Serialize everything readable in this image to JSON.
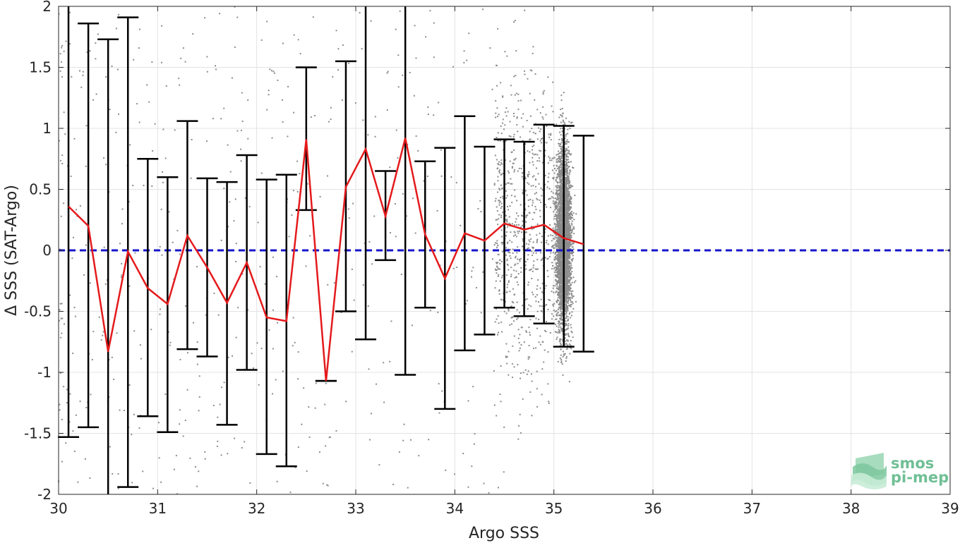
{
  "chart_data": {
    "type": "scatter",
    "xlabel": "Argo SSS",
    "ylabel": "Δ SSS (SAT-Argo)",
    "xlim": [
      30,
      39
    ],
    "ylim": [
      -2,
      2
    ],
    "x_ticks": [
      "30",
      "31",
      "32",
      "33",
      "34",
      "35",
      "36",
      "37",
      "38",
      "39"
    ],
    "y_ticks": [
      "-2",
      "-1.5",
      "-1",
      "-0.5",
      "0",
      "0.5",
      "1",
      "1.5",
      "2"
    ],
    "grid": true,
    "reference_line": {
      "y": 0,
      "style": "dashed",
      "color": "#1515cc"
    },
    "scatter_description_color": "#8c8c8c",
    "scatter_cluster": {
      "x_center": 35.1,
      "x_spread": 0.1,
      "y_center": 0.1,
      "y_spread": 0.5
    },
    "mean_line": {
      "color": "#e41a1c",
      "x": [
        30.1,
        30.3,
        30.5,
        30.7,
        30.9,
        31.1,
        31.3,
        31.5,
        31.7,
        31.9,
        32.1,
        32.3,
        32.5,
        32.7,
        32.9,
        33.1,
        33.3,
        33.5,
        33.7,
        33.9,
        34.1,
        34.3,
        34.5,
        34.7,
        34.9,
        35.1,
        35.3
      ],
      "y": [
        0.36,
        0.2,
        -0.83,
        -0.01,
        -0.31,
        -0.44,
        0.12,
        -0.14,
        -0.43,
        -0.1,
        -0.55,
        -0.58,
        0.91,
        -1.07,
        0.52,
        0.83,
        0.28,
        0.92,
        0.13,
        -0.23,
        0.14,
        0.08,
        0.22,
        0.17,
        0.21,
        0.1,
        0.05
      ]
    },
    "error_bars": {
      "color": "#000000",
      "x": [
        30.1,
        30.3,
        30.5,
        30.7,
        30.9,
        31.1,
        31.3,
        31.5,
        31.7,
        31.9,
        32.1,
        32.3,
        32.5,
        32.7,
        32.9,
        33.1,
        33.3,
        33.5,
        33.7,
        33.9,
        34.1,
        34.3,
        34.5,
        34.7,
        34.9,
        35.1,
        35.3
      ],
      "lower": [
        -1.53,
        -1.45,
        -2.2,
        -1.94,
        -1.36,
        -1.49,
        -0.81,
        -0.87,
        -1.43,
        -0.98,
        -1.67,
        -1.77,
        0.33,
        -1.07,
        -0.5,
        -0.73,
        -0.08,
        -1.02,
        -0.47,
        -1.3,
        -0.82,
        -0.69,
        -0.47,
        -0.54,
        -0.6,
        -0.79,
        -0.83
      ],
      "upper": [
        2.25,
        1.86,
        1.73,
        1.91,
        0.75,
        0.6,
        1.06,
        0.59,
        0.56,
        0.78,
        0.58,
        0.62,
        1.5,
        -1.07,
        1.55,
        2.4,
        0.65,
        2.86,
        0.73,
        0.84,
        1.1,
        0.85,
        0.91,
        0.89,
        1.03,
        1.02,
        0.94
      ]
    }
  },
  "logo": {
    "line1": "smos",
    "line2": "pi-mep"
  }
}
